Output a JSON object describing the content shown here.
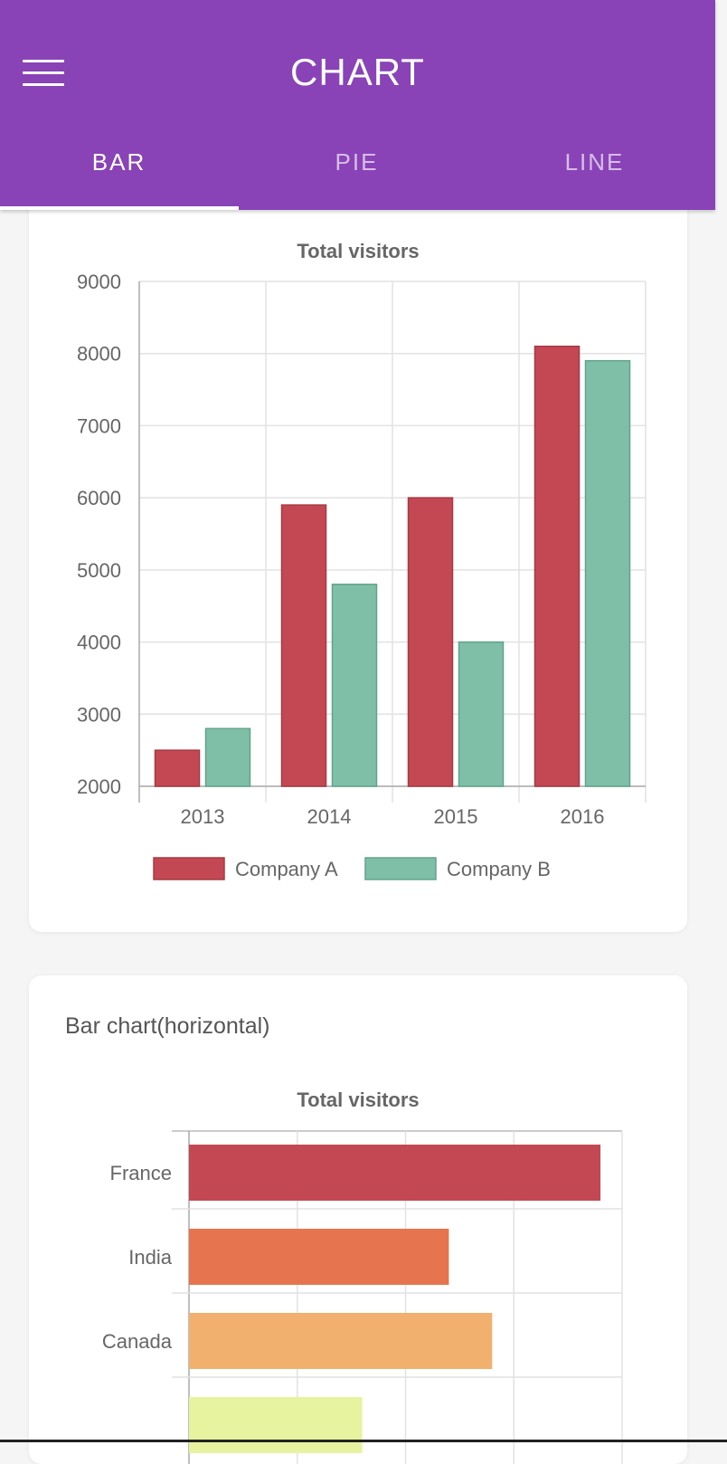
{
  "header": {
    "title": "CHART",
    "tabs": [
      {
        "label": "BAR",
        "active": true
      },
      {
        "label": "PIE",
        "active": false
      },
      {
        "label": "LINE",
        "active": false
      }
    ],
    "menu_icon": "hamburger-menu-icon",
    "color": "#8943b7"
  },
  "cards": {
    "horizontal_title": "Bar chart(horizontal)"
  },
  "chart_data": [
    {
      "type": "bar",
      "title": "Total visitors",
      "categories": [
        "2013",
        "2014",
        "2015",
        "2016"
      ],
      "series": [
        {
          "name": "Company A",
          "values": [
            2500,
            5900,
            6000,
            8100
          ],
          "color": "#c44853"
        },
        {
          "name": "Company B",
          "values": [
            2800,
            4800,
            4000,
            7900
          ],
          "color": "#7fbea7"
        }
      ],
      "ylim": [
        2000,
        9000
      ],
      "yticks": [
        "9000",
        "8000",
        "7000",
        "6000",
        "5000",
        "4000",
        "3000",
        "2000"
      ],
      "grid": true,
      "legend": "bottom"
    },
    {
      "type": "bar",
      "orientation": "horizontal",
      "title": "Total visitors",
      "categories": [
        "France",
        "India",
        "Canada",
        ""
      ],
      "values": [
        95,
        60,
        70,
        40
      ],
      "colors": [
        "#c44853",
        "#e5744f",
        "#f2b06e",
        "#e8f3a0"
      ],
      "grid": true
    }
  ]
}
